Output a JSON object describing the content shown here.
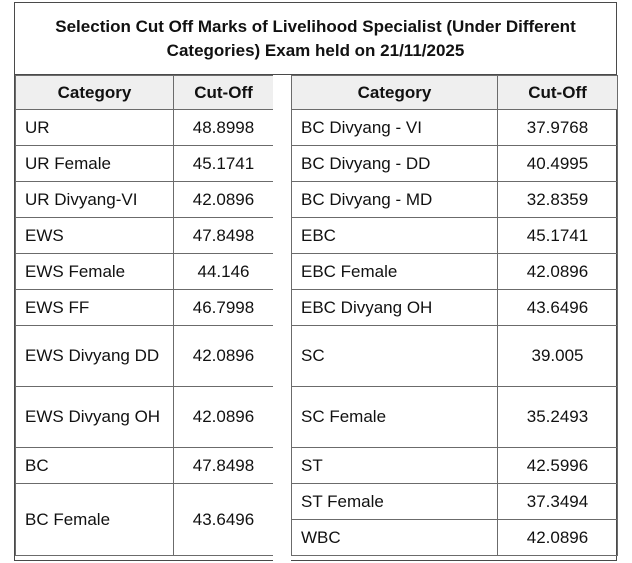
{
  "title": {
    "line1": "Selection Cut Off Marks of Livelihood Specialist (Under Different",
    "line2": "Categories) Exam held on 21/11/2025"
  },
  "headers": {
    "category": "Category",
    "cutoff": "Cut-Off"
  },
  "left_rows": [
    {
      "category": "UR",
      "cutoff": "48.8998"
    },
    {
      "category": "UR Female",
      "cutoff": "45.1741"
    },
    {
      "category": "UR Divyang-VI",
      "cutoff": "42.0896"
    },
    {
      "category": "EWS",
      "cutoff": "47.8498"
    },
    {
      "category": "EWS Female",
      "cutoff": "44.146"
    },
    {
      "category": "EWS FF",
      "cutoff": "46.7998"
    },
    {
      "category": "EWS Divyang DD",
      "cutoff": "42.0896"
    },
    {
      "category": "EWS Divyang OH",
      "cutoff": "42.0896"
    },
    {
      "category": "BC",
      "cutoff": "47.8498"
    },
    {
      "category": "BC Female",
      "cutoff": "43.6496"
    }
  ],
  "right_rows": [
    {
      "category": "BC Divyang - VI",
      "cutoff": "37.9768"
    },
    {
      "category": "BC Divyang - DD",
      "cutoff": "40.4995"
    },
    {
      "category": "BC Divyang - MD",
      "cutoff": "32.8359"
    },
    {
      "category": "EBC",
      "cutoff": "45.1741"
    },
    {
      "category": "EBC Female",
      "cutoff": "42.0896"
    },
    {
      "category": "EBC Divyang OH",
      "cutoff": "43.6496"
    },
    {
      "category": "SC",
      "cutoff": "39.005"
    },
    {
      "category": "SC Female",
      "cutoff": "35.2493"
    },
    {
      "category": "ST",
      "cutoff": "42.5996"
    },
    {
      "category": "ST Female",
      "cutoff": "37.3494"
    },
    {
      "category": "WBC",
      "cutoff": "42.0896"
    }
  ]
}
